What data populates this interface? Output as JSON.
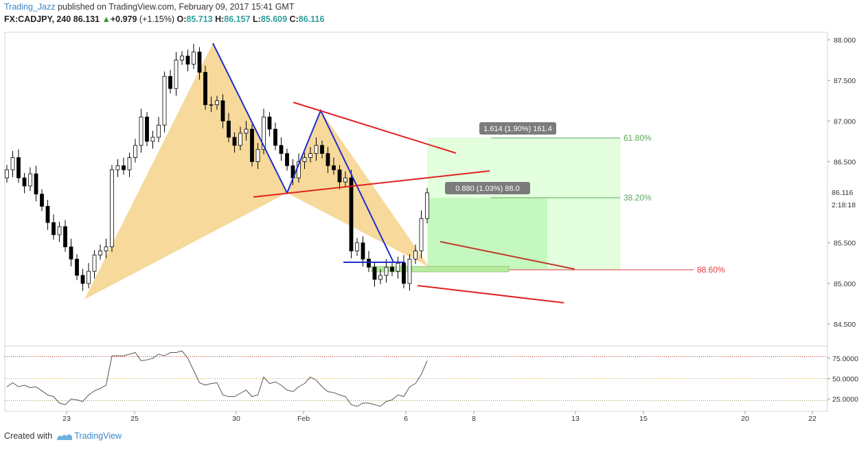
{
  "header": {
    "author": "Trading_Jazz",
    "published_text": " published on TradingView.com, February 09, 2017 15:41 GMT",
    "symbol": "FX:CADJPY, 240",
    "price": "86.131",
    "change_arrow": "▲",
    "change": "+0.979",
    "change_pct": "(+1.15%)",
    "o_label": "O:",
    "o_value": "85.713",
    "h_label": "H:",
    "h_value": "86.157",
    "l_label": "L:",
    "l_value": "85.609",
    "c_label": "C:",
    "c_value": "86.116"
  },
  "footer": {
    "created_with": "Created with",
    "brand": "TradingView"
  },
  "colors": {
    "up_candle": "#ffffff",
    "down_candle": "#000000",
    "pattern_fill": "#f5d28a",
    "pattern_line": "#1d2bd0",
    "trend_line": "#e02020",
    "channel_line": "#c0392b",
    "fib_green": "#5aa85a",
    "fib_red": "#e03a3a",
    "target_zone": "#dfffd9",
    "rsi_line": "#555555"
  },
  "chart_data": [
    {
      "type": "candlestick",
      "symbol": "FX:CADJPY",
      "interval": "240",
      "y_axis_ticks": [
        "88.000",
        "87.500",
        "87.000",
        "86.500",
        "86.116",
        "85.500",
        "85.000",
        "84.500"
      ],
      "last_price_label": "86.116",
      "countdown_label": "2:18:18",
      "ylim": [
        84.3,
        88.1
      ],
      "x_axis_ticks": [
        "23",
        "25",
        "30",
        "Feb",
        "6",
        "8",
        "13",
        "15",
        "20",
        "22"
      ],
      "closes": [
        86.4,
        86.55,
        86.3,
        86.2,
        86.35,
        86.1,
        85.95,
        85.75,
        85.6,
        85.7,
        85.45,
        85.3,
        85.1,
        85.0,
        85.15,
        85.35,
        85.4,
        85.45,
        86.4,
        86.45,
        86.4,
        86.55,
        86.7,
        87.05,
        86.75,
        86.8,
        86.95,
        87.55,
        87.4,
        87.75,
        87.8,
        87.7,
        87.85,
        87.6,
        87.2,
        87.2,
        87.25,
        87.0,
        86.8,
        86.7,
        86.85,
        86.9,
        86.5,
        86.65,
        87.05,
        86.9,
        86.7,
        86.6,
        86.45,
        86.3,
        86.5,
        86.55,
        86.6,
        86.7,
        86.6,
        86.45,
        86.4,
        86.25,
        86.3,
        85.4,
        85.5,
        85.3,
        85.2,
        85.05,
        85.1,
        85.2,
        85.15,
        85.25,
        85.0,
        85.3,
        85.4,
        85.8,
        86.116
      ],
      "pattern_label_box": "1.614 (1.90%) 161.4",
      "pattern_label_box_2": "0.880 (1.03%) 88.0",
      "fib_levels": [
        {
          "label": "61.80%",
          "value": 86.79
        },
        {
          "label": "38.20%",
          "value": 86.0
        },
        {
          "label": "88.60%",
          "value": 85.18
        }
      ]
    },
    {
      "type": "line",
      "name": "RSI",
      "y_axis_ticks": [
        "75.0000",
        "50.0000",
        "25.0000"
      ],
      "ylim": [
        10,
        90
      ],
      "reference_levels": [
        77,
        50,
        23
      ],
      "values": [
        40,
        45,
        40,
        42,
        39,
        40,
        35,
        30,
        28,
        20,
        18,
        25,
        24,
        22,
        30,
        35,
        38,
        42,
        78,
        78,
        78,
        80,
        82,
        72,
        73,
        75,
        80,
        78,
        82,
        82,
        84,
        75,
        60,
        45,
        42,
        44,
        45,
        30,
        28,
        28,
        32,
        36,
        28,
        30,
        52,
        44,
        46,
        42,
        36,
        34,
        40,
        44,
        52,
        48,
        40,
        34,
        33,
        30,
        28,
        18,
        16,
        20,
        20,
        18,
        16,
        22,
        24,
        30,
        28,
        40,
        44,
        55,
        72
      ]
    }
  ]
}
